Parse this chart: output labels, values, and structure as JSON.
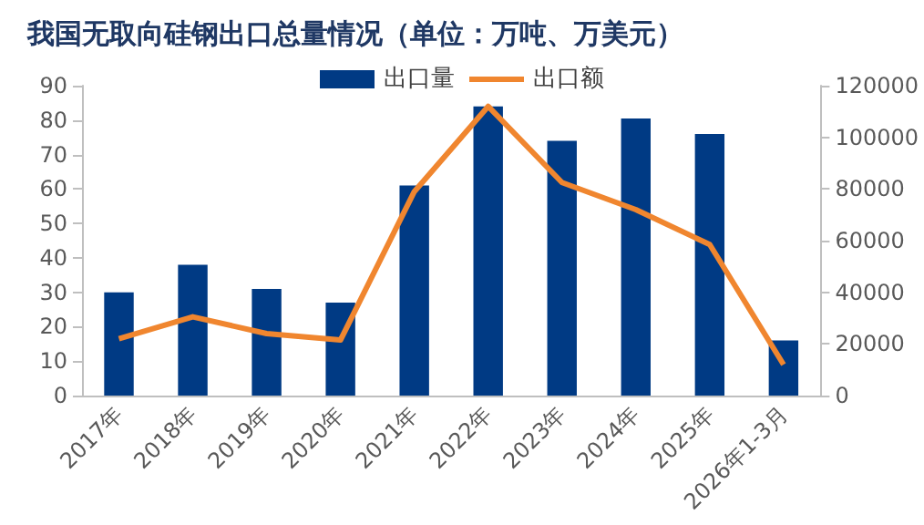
{
  "chart_data": {
    "type": "bar",
    "title": "我国无取向硅钢出口总量情况（单位：万吨、万美元）",
    "categories": [
      "2017年",
      "2018年",
      "2019年",
      "2020年",
      "2021年",
      "2022年",
      "2023年",
      "2024年",
      "2025年",
      "2026年1-3月"
    ],
    "series": [
      {
        "name": "出口量",
        "color": "#003a84",
        "values": [
          30,
          38,
          31,
          27,
          61,
          84,
          74,
          80.5,
          76,
          16
        ]
      },
      {
        "name": "出口额",
        "type": "line",
        "axis": "y2",
        "color": "#f0862f",
        "values": [
          22000,
          30500,
          24000,
          21500,
          79000,
          112000,
          82500,
          72000,
          58500,
          12000
        ]
      }
    ],
    "ylim": [
      0,
      90
    ],
    "yticks": [
      0,
      10,
      20,
      30,
      40,
      50,
      60,
      70,
      80,
      90
    ],
    "y2lim": [
      0,
      120000
    ],
    "y2ticks": [
      0,
      20000,
      40000,
      60000,
      80000,
      100000,
      120000
    ],
    "grid": false,
    "legend": "top",
    "marker": "none"
  }
}
